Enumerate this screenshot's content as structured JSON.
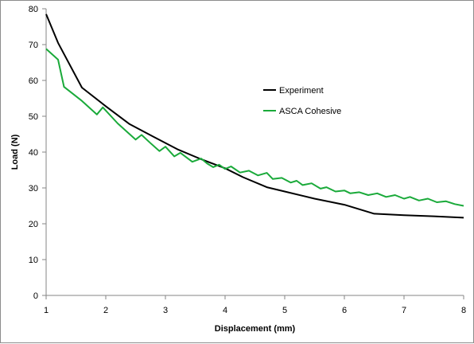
{
  "chart_data": {
    "type": "line",
    "title": "",
    "xlabel": "Displacement (mm)",
    "ylabel": "Load (N)",
    "xlim": [
      1,
      8
    ],
    "ylim": [
      0,
      80
    ],
    "xticks": [
      1,
      2,
      3,
      4,
      5,
      6,
      7,
      8
    ],
    "yticks": [
      0,
      10,
      20,
      30,
      40,
      50,
      60,
      70,
      80
    ],
    "grid": false,
    "legend_position": "right",
    "series": [
      {
        "name": "Experiment",
        "color": "#000000",
        "x": [
          1.0,
          1.2,
          1.6,
          2.0,
          2.4,
          2.8,
          3.2,
          3.6,
          4.0,
          4.3,
          4.7,
          5.0,
          5.5,
          6.0,
          6.5,
          7.0,
          7.5,
          8.0
        ],
        "y": [
          78.5,
          70.5,
          58.0,
          52.8,
          47.8,
          44.3,
          40.8,
          38.0,
          35.5,
          33.0,
          30.2,
          29.0,
          27.0,
          25.3,
          22.8,
          22.4,
          22.1,
          21.7
        ]
      },
      {
        "name": "ASCA Cohesive",
        "color": "#1aaa3a",
        "x": [
          1.0,
          1.2,
          1.3,
          1.6,
          1.85,
          1.95,
          2.2,
          2.5,
          2.6,
          2.75,
          2.9,
          3.0,
          3.15,
          3.25,
          3.45,
          3.6,
          3.7,
          3.8,
          3.9,
          4.0,
          4.1,
          4.25,
          4.4,
          4.55,
          4.7,
          4.8,
          4.95,
          5.1,
          5.2,
          5.3,
          5.45,
          5.6,
          5.7,
          5.85,
          6.0,
          6.1,
          6.25,
          6.4,
          6.55,
          6.7,
          6.85,
          7.0,
          7.1,
          7.25,
          7.4,
          7.55,
          7.7,
          7.85,
          8.0
        ],
        "y": [
          68.8,
          65.8,
          58.2,
          54.3,
          50.5,
          52.5,
          48.0,
          43.5,
          44.8,
          42.5,
          40.3,
          41.5,
          38.8,
          39.8,
          37.3,
          38.2,
          36.8,
          35.8,
          36.5,
          35.3,
          36.0,
          34.3,
          34.8,
          33.5,
          34.2,
          32.5,
          32.8,
          31.5,
          32.0,
          30.8,
          31.3,
          29.8,
          30.2,
          29.0,
          29.3,
          28.5,
          28.8,
          28.0,
          28.5,
          27.5,
          28.0,
          27.0,
          27.5,
          26.5,
          27.0,
          26.0,
          26.3,
          25.5,
          25.0
        ]
      }
    ]
  }
}
